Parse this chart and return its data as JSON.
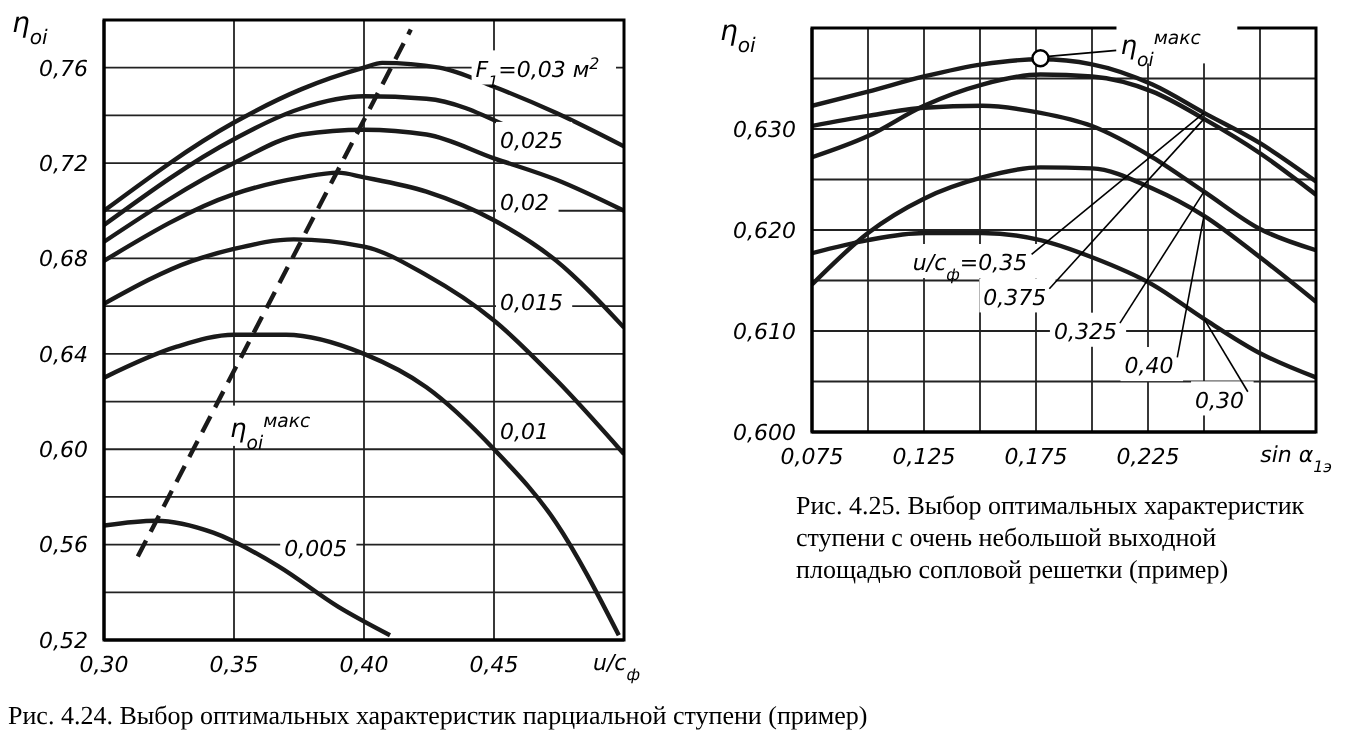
{
  "chart_data": [
    {
      "type": "line",
      "ylabel": "η$_{oi}$",
      "xlabel": "u/c$_{ф}$",
      "xlim": [
        0.3,
        0.5
      ],
      "ylim": [
        0.52,
        0.78
      ],
      "xticks": [
        {
          "value": 0.3,
          "label": "0,30"
        },
        {
          "value": 0.35,
          "label": "0,35"
        },
        {
          "value": 0.4,
          "label": "0,40"
        },
        {
          "value": 0.45,
          "label": "0,45"
        },
        {
          "value": 0.5,
          "label": null
        }
      ],
      "yticks": [
        {
          "value": 0.52,
          "label": "0,52"
        },
        {
          "value": 0.54,
          "label": null
        },
        {
          "value": 0.56,
          "label": "0,56"
        },
        {
          "value": 0.58,
          "label": null
        },
        {
          "value": 0.6,
          "label": "0,60"
        },
        {
          "value": 0.62,
          "label": null
        },
        {
          "value": 0.64,
          "label": "0,64"
        },
        {
          "value": 0.66,
          "label": null
        },
        {
          "value": 0.68,
          "label": "0,68"
        },
        {
          "value": 0.7,
          "label": null
        },
        {
          "value": 0.72,
          "label": "0,72"
        },
        {
          "value": 0.74,
          "label": null
        },
        {
          "value": 0.76,
          "label": "0,76"
        },
        {
          "value": 0.78,
          "label": null
        }
      ],
      "grid": true,
      "legend": false,
      "marker": "none",
      "series": [
        {
          "name": "F$_{1}$=0,03 м$^{2}$",
          "color": "#1a1a1a",
          "x": [
            0.3,
            0.35,
            0.376,
            0.4,
            0.407,
            0.429,
            0.45,
            0.474,
            0.5
          ],
          "values": [
            0.7,
            0.737,
            0.751,
            0.76,
            0.762,
            0.76,
            0.752,
            0.741,
            0.727
          ]
        },
        {
          "color": "#1a1a1a",
          "x": [
            0.3,
            0.35,
            0.376,
            0.4,
            0.424,
            0.454
          ],
          "values": [
            0.694,
            0.73,
            0.743,
            0.748,
            0.747,
            0.736
          ]
        },
        {
          "name": "0,025",
          "color": "#1a1a1a",
          "x": [
            0.3,
            0.35,
            0.376,
            0.4,
            0.424,
            0.45,
            0.474,
            0.5
          ],
          "values": [
            0.687,
            0.72,
            0.732,
            0.734,
            0.732,
            0.722,
            0.713,
            0.7
          ]
        },
        {
          "name": "0,02",
          "color": "#1a1a1a",
          "x": [
            0.3,
            0.35,
            0.376,
            0.39,
            0.4,
            0.424,
            0.45,
            0.474,
            0.5
          ],
          "values": [
            0.679,
            0.707,
            0.714,
            0.716,
            0.714,
            0.708,
            0.696,
            0.679,
            0.651
          ]
        },
        {
          "name": "0,015",
          "color": "#1a1a1a",
          "x": [
            0.3,
            0.334,
            0.35,
            0.373,
            0.4,
            0.424,
            0.45,
            0.474,
            0.5
          ],
          "values": [
            0.661,
            0.679,
            0.684,
            0.688,
            0.685,
            0.673,
            0.654,
            0.629,
            0.598
          ]
        },
        {
          "name": "0,01",
          "color": "#1a1a1a",
          "x": [
            0.3,
            0.328,
            0.35,
            0.37,
            0.4,
            0.424,
            0.45,
            0.474,
            0.498
          ],
          "values": [
            0.63,
            0.643,
            0.648,
            0.648,
            0.64,
            0.626,
            0.6,
            0.569,
            0.522
          ]
        },
        {
          "name": "0,005",
          "color": "#1a1a1a",
          "x": [
            0.3,
            0.32,
            0.342,
            0.367,
            0.39,
            0.41
          ],
          "values": [
            0.568,
            0.57,
            0.565,
            0.551,
            0.534,
            0.522
          ]
        },
        {
          "name": "η$_{oi}$$^{макс}$",
          "type": "line",
          "line_style": "dashed",
          "color": "#1a1a1a",
          "x": [
            0.313,
            0.418
          ],
          "values": [
            0.555,
            0.776
          ]
        }
      ],
      "annotations": [
        "Рис. 4.24. Выбор оптимальных характеристик парциальной ступени (пример)"
      ]
    },
    {
      "type": "line",
      "ylabel": "η$_{oi}$",
      "xlabel": "sin α$_{1э}$",
      "xlim": [
        0.075,
        0.3
      ],
      "ylim": [
        0.6,
        0.64
      ],
      "xticks": [
        {
          "value": 0.075,
          "label": "0,075"
        },
        {
          "value": 0.1,
          "label": null
        },
        {
          "value": 0.125,
          "label": "0,125"
        },
        {
          "value": 0.15,
          "label": null
        },
        {
          "value": 0.175,
          "label": "0,175"
        },
        {
          "value": 0.2,
          "label": null
        },
        {
          "value": 0.225,
          "label": "0,225"
        },
        {
          "value": 0.25,
          "label": null
        },
        {
          "value": 0.275,
          "label": null
        },
        {
          "value": 0.3,
          "label": null
        }
      ],
      "yticks": [
        {
          "value": 0.6,
          "label": "0,600"
        },
        {
          "value": 0.605,
          "label": null
        },
        {
          "value": 0.61,
          "label": "0,610"
        },
        {
          "value": 0.615,
          "label": null
        },
        {
          "value": 0.62,
          "label": "0,620"
        },
        {
          "value": 0.625,
          "label": null
        },
        {
          "value": 0.63,
          "label": "0,630"
        },
        {
          "value": 0.635,
          "label": null
        },
        {
          "value": 0.64,
          "label": null
        }
      ],
      "grid": true,
      "legend": false,
      "marker": "none",
      "series": [
        {
          "name": "u/c$_{ф}$=0,35",
          "color": "#1a1a1a",
          "x": [
            0.075,
            0.1,
            0.125,
            0.151,
            0.177,
            0.2,
            0.227,
            0.25,
            0.275,
            0.3
          ],
          "values": [
            0.6323,
            0.6337,
            0.6352,
            0.6364,
            0.6369,
            0.6364,
            0.6344,
            0.6316,
            0.6286,
            0.6248
          ]
        },
        {
          "name": "0,375",
          "color": "#1a1a1a",
          "x": [
            0.075,
            0.1,
            0.125,
            0.151,
            0.177,
            0.2,
            0.227,
            0.25,
            0.275,
            0.3
          ],
          "values": [
            0.6272,
            0.6293,
            0.6323,
            0.6344,
            0.6354,
            0.6352,
            0.6337,
            0.631,
            0.6276,
            0.6235
          ]
        },
        {
          "name": "0,325",
          "color": "#1a1a1a",
          "x": [
            0.075,
            0.1,
            0.125,
            0.151,
            0.177,
            0.2,
            0.227,
            0.25,
            0.275,
            0.3
          ],
          "values": [
            0.6303,
            0.6313,
            0.6321,
            0.6323,
            0.6316,
            0.6303,
            0.6272,
            0.6238,
            0.6201,
            0.618
          ]
        },
        {
          "name": "0,40",
          "color": "#1a1a1a",
          "x": [
            0.075,
            0.1,
            0.125,
            0.151,
            0.177,
            0.2,
            0.227,
            0.25,
            0.275,
            0.3
          ],
          "values": [
            0.6146,
            0.6197,
            0.6231,
            0.6252,
            0.6262,
            0.6261,
            0.6241,
            0.6214,
            0.6173,
            0.6129
          ]
        },
        {
          "name": "0,30",
          "color": "#1a1a1a",
          "x": [
            0.075,
            0.1,
            0.125,
            0.151,
            0.177,
            0.2,
            0.227,
            0.25,
            0.275,
            0.3
          ],
          "values": [
            0.6177,
            0.619,
            0.6197,
            0.6197,
            0.619,
            0.6173,
            0.6146,
            0.6112,
            0.6078,
            0.6054
          ]
        }
      ],
      "annotations": [
        {
          "text": "η$_{oi}$$^{макс}$",
          "x": 0.177,
          "y": 0.637
        },
        "Рис. 4.25. Выбор оптимальных характеристик ступени с очень небольшой выходной площадью сопловой решетки (пример)"
      ]
    }
  ]
}
